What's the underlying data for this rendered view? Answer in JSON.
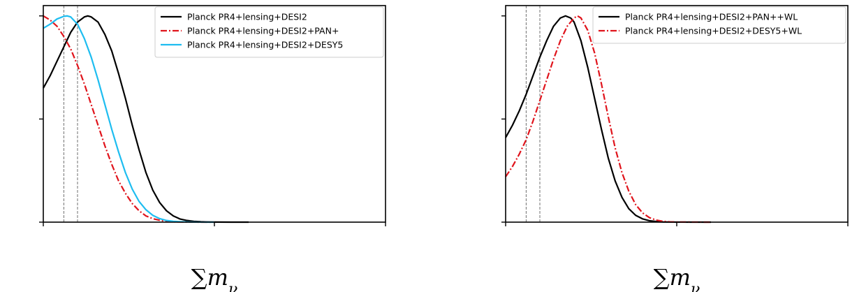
{
  "chart_data": [
    {
      "type": "line",
      "title": "",
      "xlabel": "∑m_ν",
      "ylabel": "",
      "xlim": [
        0,
        1
      ],
      "ylim": [
        0,
        1.05
      ],
      "xticks": [
        "0.0",
        "0.5",
        "1.0"
      ],
      "yticks": [
        "0.0",
        "0.5",
        "1.0"
      ],
      "reference_lines_x": [
        0.06,
        0.1
      ],
      "legend_position": "top-right",
      "series": [
        {
          "name": "Planck PR4+lensing+DESI2",
          "color": "#000000",
          "dash": "solid",
          "x": [
            0.0,
            0.02,
            0.04,
            0.06,
            0.08,
            0.1,
            0.12,
            0.13,
            0.14,
            0.16,
            0.18,
            0.2,
            0.22,
            0.24,
            0.26,
            0.28,
            0.3,
            0.32,
            0.34,
            0.36,
            0.38,
            0.4,
            0.42,
            0.44,
            0.46,
            0.48,
            0.5,
            0.55,
            0.6
          ],
          "y": [
            0.65,
            0.71,
            0.78,
            0.85,
            0.92,
            0.97,
            0.995,
            1.0,
            0.995,
            0.97,
            0.91,
            0.83,
            0.72,
            0.6,
            0.47,
            0.35,
            0.24,
            0.155,
            0.095,
            0.055,
            0.03,
            0.015,
            0.008,
            0.004,
            0.002,
            0.001,
            0.0005,
            0.0,
            0.0
          ]
        },
        {
          "name": "Planck PR4+lensing+DESI2+PAN+",
          "color": "#e0141c",
          "dash": "dashdot",
          "x": [
            0.0,
            0.02,
            0.04,
            0.06,
            0.08,
            0.1,
            0.12,
            0.14,
            0.16,
            0.18,
            0.2,
            0.22,
            0.24,
            0.26,
            0.28,
            0.3,
            0.32,
            0.34,
            0.36,
            0.38,
            0.4,
            0.42,
            0.44,
            0.46,
            0.5
          ],
          "y": [
            1.0,
            0.98,
            0.95,
            0.9,
            0.84,
            0.76,
            0.67,
            0.57,
            0.47,
            0.37,
            0.28,
            0.2,
            0.14,
            0.09,
            0.055,
            0.03,
            0.017,
            0.009,
            0.004,
            0.002,
            0.001,
            0.0005,
            0.0002,
            0.0,
            0.0
          ]
        },
        {
          "name": "Planck PR4+lensing+DESI2+DESY5",
          "color": "#1ebdf0",
          "dash": "solid",
          "x": [
            0.0,
            0.02,
            0.04,
            0.06,
            0.07,
            0.08,
            0.1,
            0.12,
            0.14,
            0.16,
            0.18,
            0.2,
            0.22,
            0.24,
            0.26,
            0.28,
            0.3,
            0.32,
            0.34,
            0.36,
            0.38,
            0.4,
            0.42,
            0.44,
            0.46,
            0.48,
            0.5
          ],
          "y": [
            0.94,
            0.96,
            0.985,
            0.998,
            1.0,
            0.995,
            0.96,
            0.89,
            0.8,
            0.69,
            0.57,
            0.45,
            0.34,
            0.24,
            0.16,
            0.1,
            0.06,
            0.033,
            0.017,
            0.008,
            0.004,
            0.002,
            0.001,
            0.0005,
            0.0002,
            0.0,
            0.0
          ]
        }
      ]
    },
    {
      "type": "line",
      "title": "",
      "xlabel": "∑m_ν",
      "ylabel": "",
      "xlim": [
        0,
        1
      ],
      "ylim": [
        0,
        1.05
      ],
      "xticks": [
        "0.0",
        "0.5",
        "1.0"
      ],
      "yticks": [
        "0.0",
        "0.5",
        "1.0"
      ],
      "reference_lines_x": [
        0.06,
        0.1
      ],
      "legend_position": "top-right",
      "series": [
        {
          "name": "Planck PR4+lensing+DESI2+PAN++WL",
          "color": "#000000",
          "dash": "solid",
          "x": [
            0.0,
            0.02,
            0.04,
            0.06,
            0.08,
            0.1,
            0.12,
            0.14,
            0.16,
            0.175,
            0.19,
            0.2,
            0.22,
            0.24,
            0.26,
            0.28,
            0.3,
            0.32,
            0.34,
            0.36,
            0.38,
            0.4,
            0.42,
            0.44,
            0.46,
            0.5,
            0.55,
            0.6
          ],
          "y": [
            0.41,
            0.47,
            0.54,
            0.62,
            0.71,
            0.8,
            0.88,
            0.95,
            0.99,
            1.0,
            0.99,
            0.97,
            0.88,
            0.75,
            0.6,
            0.45,
            0.31,
            0.2,
            0.12,
            0.065,
            0.033,
            0.016,
            0.007,
            0.003,
            0.001,
            0.0002,
            0.0,
            0.0
          ]
        },
        {
          "name": "Planck PR4+lensing+DESI2+DESY5+WL",
          "color": "#e0141c",
          "dash": "dashdot",
          "x": [
            0.0,
            0.02,
            0.04,
            0.06,
            0.08,
            0.1,
            0.12,
            0.14,
            0.16,
            0.18,
            0.2,
            0.21,
            0.22,
            0.24,
            0.26,
            0.28,
            0.3,
            0.32,
            0.34,
            0.36,
            0.38,
            0.4,
            0.42,
            0.44,
            0.46,
            0.48,
            0.5,
            0.6
          ],
          "y": [
            0.22,
            0.27,
            0.33,
            0.4,
            0.49,
            0.59,
            0.69,
            0.79,
            0.88,
            0.95,
            0.99,
            1.0,
            0.99,
            0.93,
            0.82,
            0.67,
            0.51,
            0.36,
            0.24,
            0.15,
            0.085,
            0.045,
            0.022,
            0.01,
            0.004,
            0.0015,
            0.0005,
            0.0
          ]
        }
      ]
    }
  ]
}
